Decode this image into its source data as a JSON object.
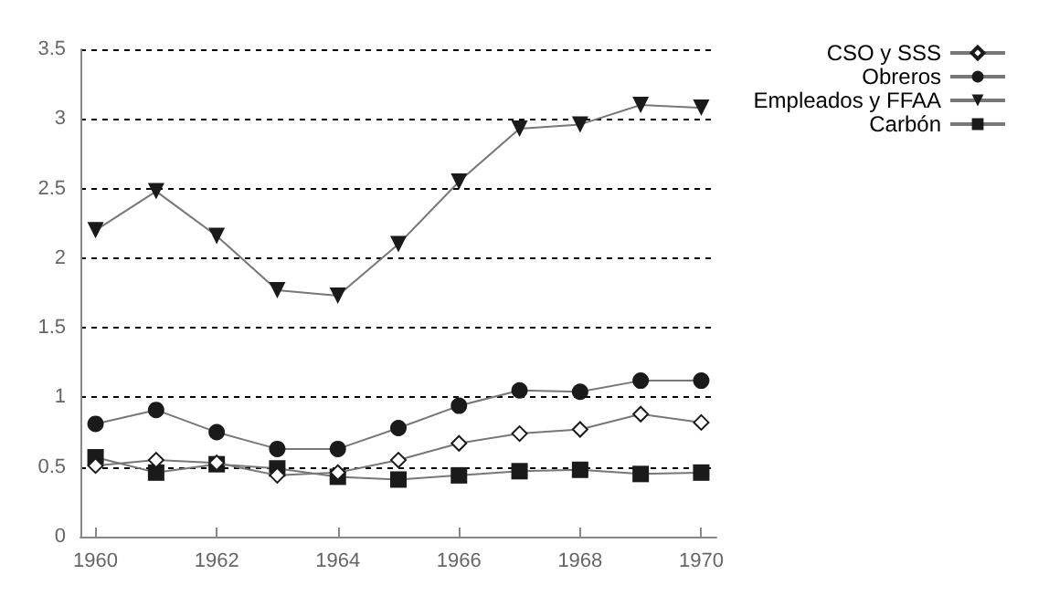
{
  "chart_data": {
    "type": "line",
    "x": [
      1960,
      1961,
      1962,
      1963,
      1964,
      1965,
      1966,
      1967,
      1968,
      1969,
      1970
    ],
    "series": [
      {
        "name": "CSO y SSS",
        "color": "#1a1a1a",
        "marker": "diamond",
        "values": [
          0.51,
          0.55,
          0.53,
          0.44,
          0.46,
          0.55,
          0.67,
          0.74,
          0.77,
          0.88,
          0.82
        ]
      },
      {
        "name": "Obreros",
        "color": "#1a1a1a",
        "marker": "circle",
        "values": [
          0.81,
          0.91,
          0.75,
          0.63,
          0.63,
          0.78,
          0.94,
          1.05,
          1.04,
          1.12,
          1.12
        ]
      },
      {
        "name": "Empleados y FFAA",
        "color": "#1a1a1a",
        "marker": "triangle",
        "values": [
          2.2,
          2.48,
          2.16,
          1.77,
          1.73,
          2.1,
          2.55,
          2.93,
          2.96,
          3.1,
          3.08
        ]
      },
      {
        "name": "Carbón",
        "color": "#1a1a1a",
        "marker": "square",
        "values": [
          0.57,
          0.46,
          0.52,
          0.49,
          0.43,
          0.41,
          0.44,
          0.47,
          0.48,
          0.45,
          0.46
        ]
      }
    ],
    "xlim": [
      1959.75,
      1970.25
    ],
    "xticks": [
      1960,
      1962,
      1964,
      1966,
      1968,
      1970
    ],
    "ylim": [
      0,
      3.5
    ],
    "yticks": [
      0,
      0.5,
      1,
      1.5,
      2,
      2.5,
      3,
      3.5
    ],
    "grid": "y",
    "legend": "top right",
    "line_style": "solid"
  }
}
